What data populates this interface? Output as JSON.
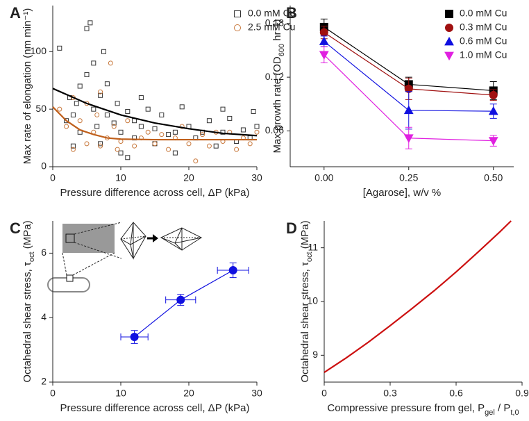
{
  "chart_data": [
    {
      "type": "scatter",
      "panel": "A",
      "xlabel": [
        "Pressure difference across cell, ΔP (kPa)"
      ],
      "ylabel": [
        "Max rate of elongation (nm min⁻¹)"
      ],
      "xlim": [
        0,
        30
      ],
      "ylim": [
        0,
        140
      ],
      "xticks": [
        0,
        10,
        20,
        30
      ],
      "yticks": [
        0,
        50,
        100
      ],
      "legend": "top-right",
      "series": [
        {
          "name": "0.0 mM Cu",
          "color": "#333333",
          "marker": "square",
          "filled": false,
          "mode": "markers",
          "x": [
            1,
            2,
            2.5,
            3,
            3.5,
            4,
            4,
            5,
            5,
            5.5,
            6,
            6,
            6.5,
            7,
            7.5,
            8,
            8,
            9,
            9.5,
            10,
            10,
            11,
            12,
            12,
            13,
            14,
            15,
            15,
            16,
            17,
            18,
            19,
            20,
            21,
            22,
            23,
            24,
            25,
            26,
            27,
            28,
            29,
            29.5,
            30,
            3,
            7,
            11,
            13,
            18,
            25
          ],
          "values": [
            103,
            40,
            60,
            45,
            55,
            70,
            30,
            120,
            80,
            125,
            50,
            90,
            35,
            62,
            100,
            45,
            72,
            38,
            55,
            30,
            12,
            48,
            25,
            40,
            35,
            50,
            20,
            33,
            45,
            28,
            30,
            52,
            35,
            25,
            30,
            40,
            18,
            30,
            42,
            22,
            32,
            25,
            48,
            35,
            18,
            20,
            8,
            60,
            12,
            50
          ]
        },
        {
          "name": "2.5 mM Cu",
          "color": "#c8783c",
          "marker": "circle",
          "filled": false,
          "mode": "markers",
          "x": [
            1,
            2,
            3,
            3,
            4,
            5,
            5,
            6,
            6.5,
            7,
            7,
            8,
            8.5,
            9,
            9.5,
            10,
            11,
            12,
            13,
            14,
            15,
            16,
            17,
            18,
            19,
            20,
            21,
            22,
            23,
            24,
            25,
            26,
            27,
            28,
            29,
            30
          ],
          "values": [
            50,
            35,
            60,
            15,
            40,
            55,
            20,
            30,
            45,
            65,
            18,
            25,
            90,
            35,
            15,
            22,
            40,
            18,
            25,
            30,
            20,
            28,
            15,
            25,
            35,
            20,
            5,
            28,
            18,
            30,
            22,
            30,
            15,
            25,
            20,
            30
          ]
        },
        {
          "color": "#000000",
          "mode": "line",
          "x": [
            0,
            5,
            10,
            15,
            20,
            25,
            30
          ],
          "values": [
            68,
            55,
            45,
            38,
            33,
            29,
            27
          ]
        },
        {
          "color": "#c0601c",
          "mode": "line",
          "x": [
            0,
            2,
            4,
            6,
            8,
            10,
            15,
            20,
            30
          ],
          "values": [
            52,
            40,
            32,
            28,
            25,
            24,
            23.5,
            23.5,
            23.5
          ]
        }
      ]
    },
    {
      "type": "line",
      "panel": "B",
      "xlabel": [
        "[Agarose], w/v %"
      ],
      "ylabel": [
        "Max growth rate (OD",
        "600",
        " hr⁻¹)"
      ],
      "x": [
        0,
        0.25,
        0.5
      ],
      "xlim": [
        -0.1,
        0.56
      ],
      "ylim": [
        0.02,
        0.2
      ],
      "xticks": [
        {
          "value": 0,
          "label": "0.00"
        },
        {
          "value": 0.25,
          "label": "0.25"
        },
        {
          "value": 0.5,
          "label": "0.50"
        }
      ],
      "yticks": [
        0.06,
        0.12,
        0.18
      ],
      "legend": "top-right",
      "series": [
        {
          "name": "0.0 mM Cu",
          "color": "#000000",
          "marker": "square",
          "filled": true,
          "mode": "lines+markers",
          "values": [
            0.176,
            0.112,
            0.105
          ],
          "errors": [
            0.009,
            0.008,
            0.01
          ]
        },
        {
          "name": "0.3 mM Cu",
          "color": "#a01010",
          "marker": "circle",
          "filled": true,
          "mode": "lines+markers",
          "values": [
            0.17,
            0.107,
            0.1
          ],
          "errors": [
            0.007,
            0.012,
            0.006
          ]
        },
        {
          "name": "0.6 mM Cu",
          "color": "#1010e0",
          "marker": "triangle-up",
          "filled": true,
          "mode": "lines+markers",
          "values": [
            0.16,
            0.083,
            0.082
          ],
          "errors": [
            0.006,
            0.021,
            0.008
          ]
        },
        {
          "name": "1.0 mM Cu",
          "color": "#e020e0",
          "marker": "triangle-down",
          "filled": true,
          "mode": "lines+markers",
          "values": [
            0.145,
            0.052,
            0.049
          ],
          "errors": [
            0.009,
            0.012,
            0.006
          ]
        }
      ]
    },
    {
      "type": "scatter",
      "panel": "C",
      "xlabel": [
        "Pressure difference across cell, ΔP (kPa)"
      ],
      "ylabel": [
        "Octahedral shear stress, τ",
        "oct",
        " (MPa)"
      ],
      "xlim": [
        0,
        30
      ],
      "ylim": [
        2,
        7
      ],
      "xticks": [
        0,
        10,
        20,
        30
      ],
      "yticks": [
        2,
        4,
        6
      ],
      "series": [
        {
          "color": "#1010e0",
          "marker": "circle",
          "filled": true,
          "mode": "lines+markers",
          "x": [
            12,
            18.8,
            26.5
          ],
          "values": [
            3.4,
            4.55,
            5.47
          ],
          "xerrors": [
            2,
            2.2,
            2.3
          ],
          "errors": [
            0.2,
            0.17,
            0.23
          ]
        }
      ]
    },
    {
      "type": "line",
      "panel": "D",
      "xlabel": [
        "Compressive pressure from gel, P",
        "gel",
        " / P",
        "t,0"
      ],
      "ylabel": [
        "Octahedral shear stress, τ",
        "oct",
        " (MPa)"
      ],
      "xlim": [
        0,
        0.9
      ],
      "ylim": [
        8.5,
        11.5
      ],
      "xticks": [
        0,
        0.3,
        0.6,
        0.9
      ],
      "yticks": [
        9,
        10,
        11
      ],
      "series": [
        {
          "color": "#cc1010",
          "mode": "line",
          "x": [
            0,
            0.1,
            0.2,
            0.3,
            0.4,
            0.5,
            0.6,
            0.7,
            0.8,
            0.85
          ],
          "values": [
            8.68,
            8.95,
            9.24,
            9.55,
            9.87,
            10.2,
            10.55,
            10.92,
            11.3,
            11.5
          ]
        }
      ]
    }
  ]
}
